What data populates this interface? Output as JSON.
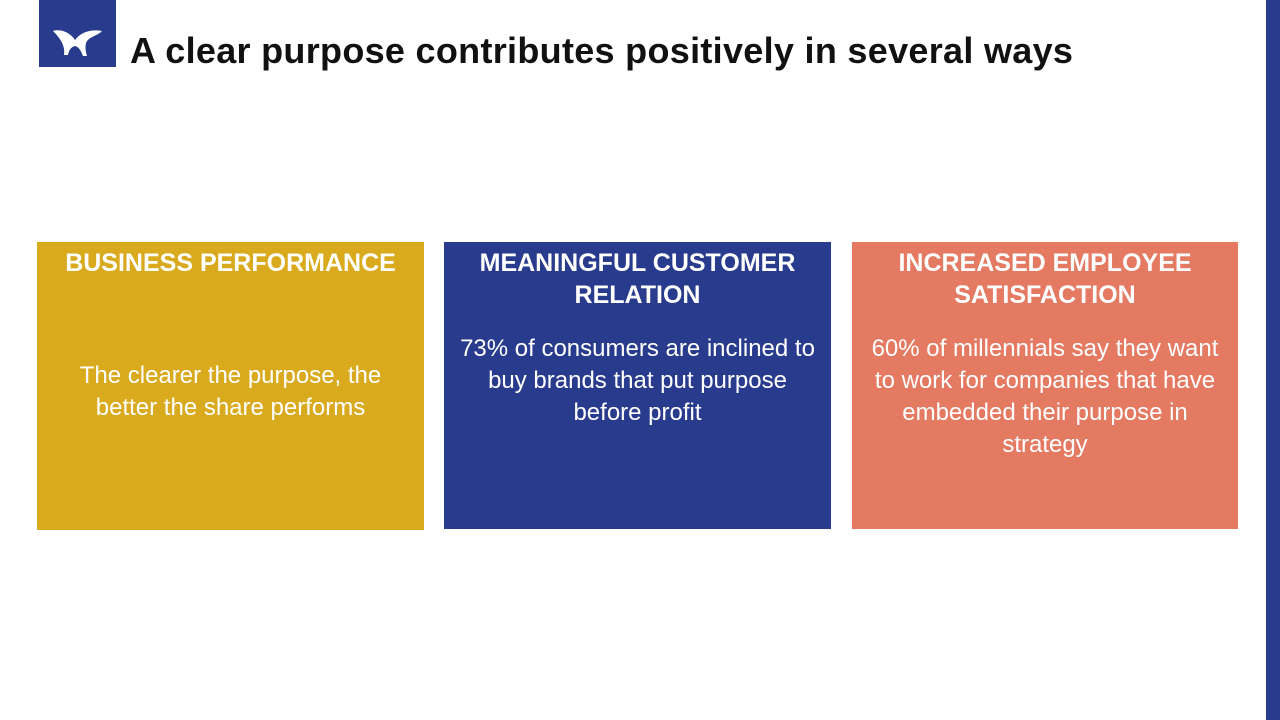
{
  "header": {
    "title": "A clear purpose contributes positively in several ways",
    "logo_icon": "bird-wing-logo-icon"
  },
  "colors": {
    "brand_navy": "#293b8c",
    "card_gold": "#d9aa1e",
    "card_navy": "#293b8c",
    "card_coral": "#e47a62"
  },
  "cards": [
    {
      "title": "BUSINESS PERFORMANCE",
      "text": "The clearer the purpose, the better the share performs"
    },
    {
      "title": "MEANINGFUL CUSTOMER RELATION",
      "text": "73% of consumers are inclined to buy brands that put purpose before profit"
    },
    {
      "title": "INCREASED EMPLOYEE SATISFACTION",
      "text": "60% of millennials say they want to work for companies that have embedded their purpose in strategy"
    }
  ]
}
